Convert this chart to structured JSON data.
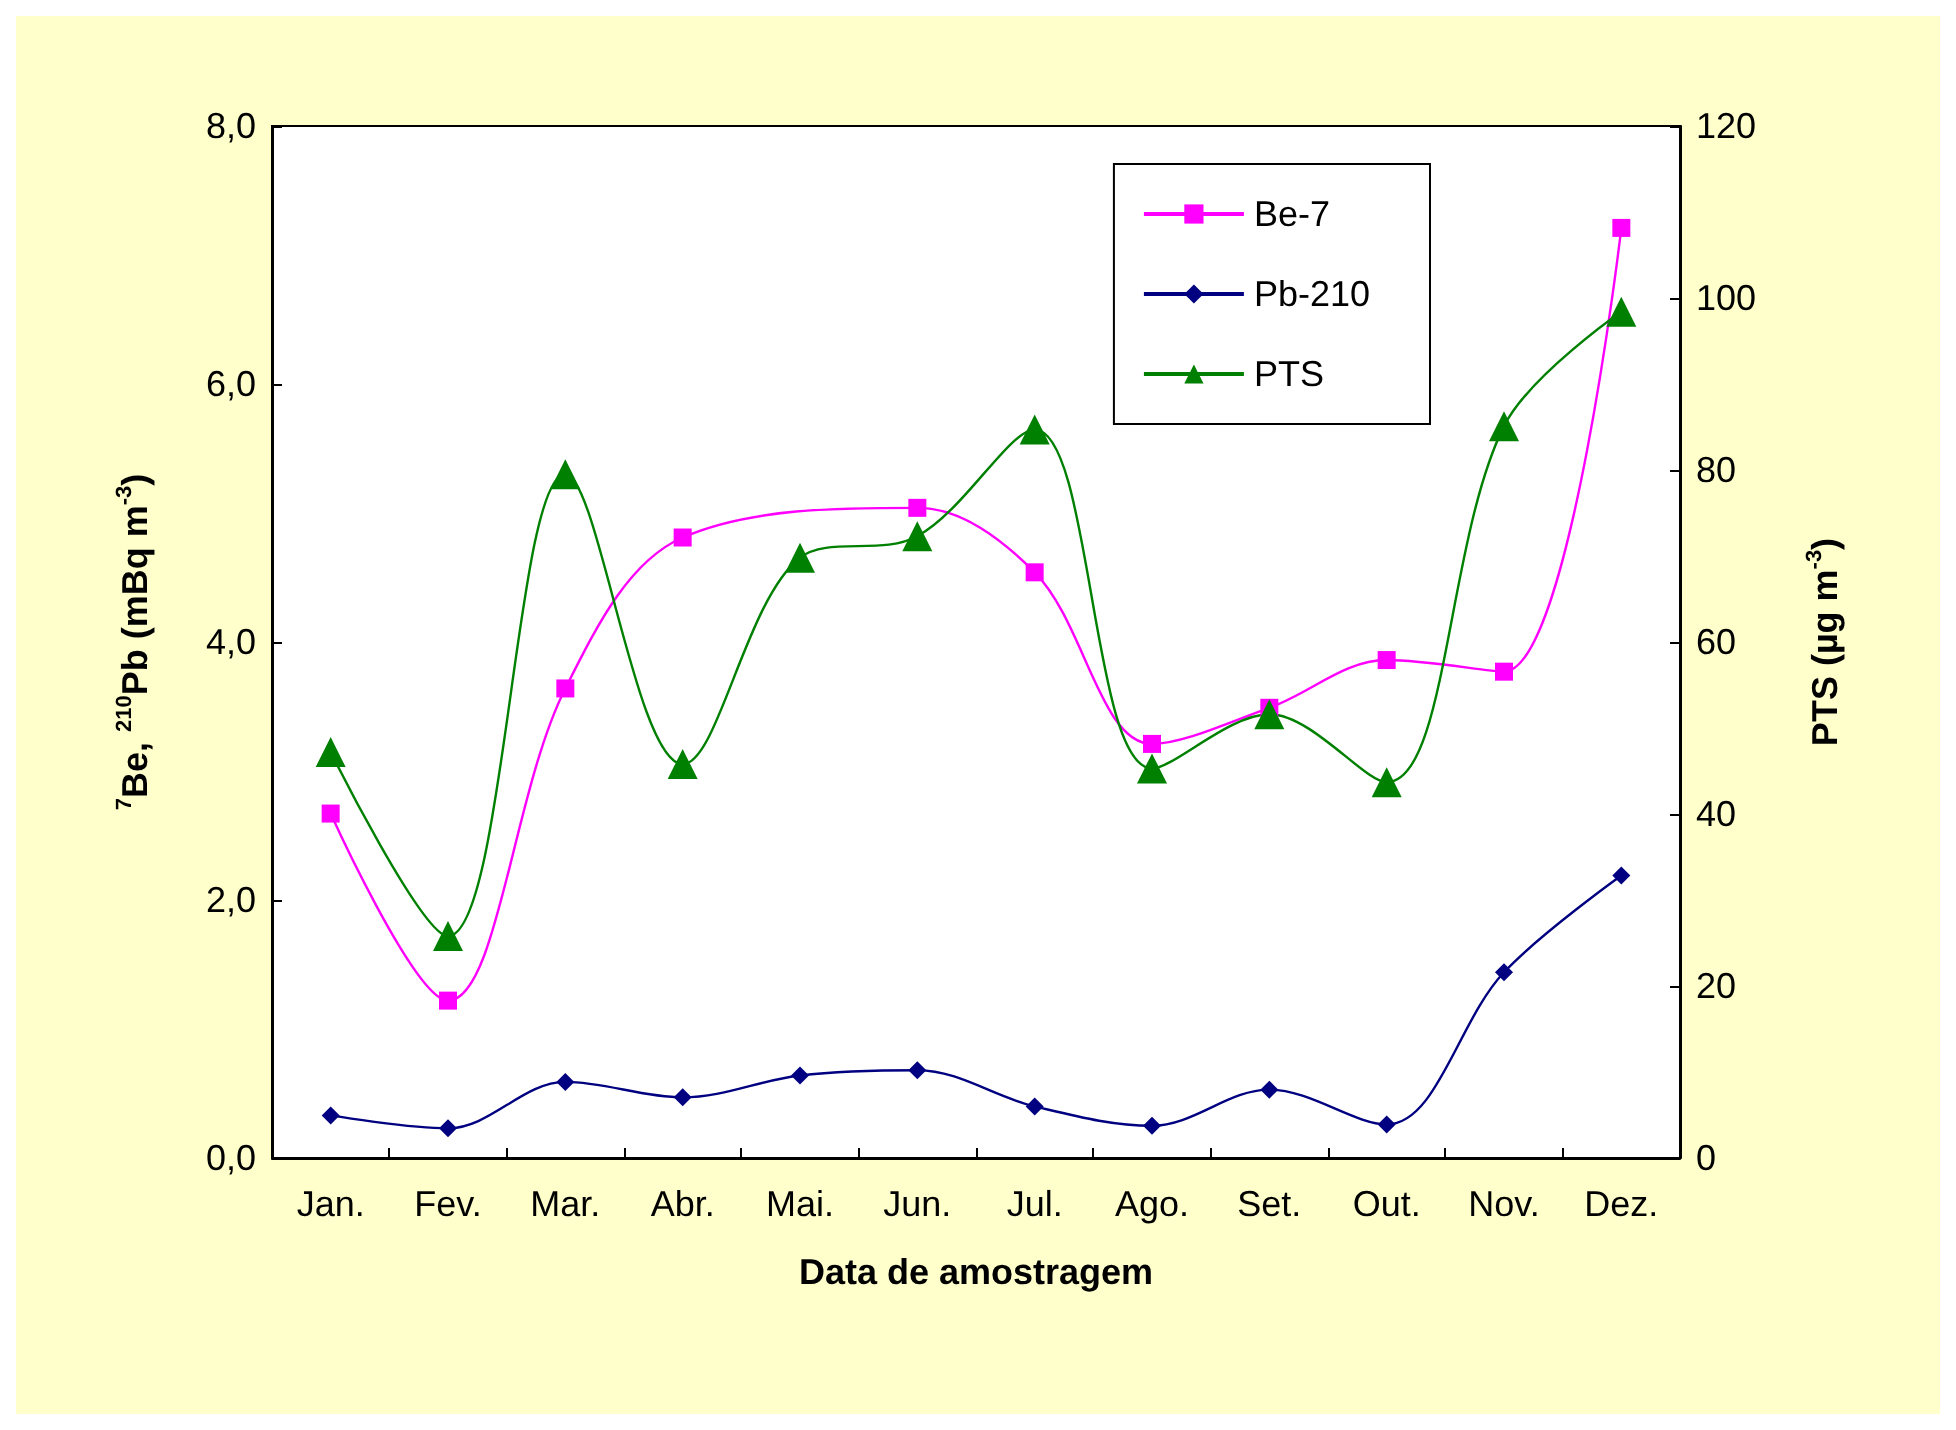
{
  "chart_data": {
    "type": "line",
    "xlabel": "Data de amostragem",
    "ylabel": "$^{7}$Be, $^{210}$Pb (mBq m$^{-3}$)",
    "y2label": "PTS (µg m$^{-3}$)",
    "categories": [
      "Jan.",
      "Fev.",
      "Mar.",
      "Abr.",
      "Mai.",
      "Jun.",
      "Jul.",
      "Ago.",
      "Set.",
      "Out.",
      "Nov.",
      "Dez."
    ],
    "series": [
      {
        "name": "Be-7",
        "color": "#ff00ff",
        "marker": "square",
        "values": [
          2.67,
          1.22,
          3.64,
          4.81,
          null,
          5.04,
          4.54,
          3.21,
          3.49,
          3.86,
          3.77,
          7.21
        ]
      },
      {
        "name": "Pb-210",
        "color": "#000080",
        "marker": "diamond",
        "values": [
          0.33,
          0.23,
          0.59,
          0.47,
          0.64,
          0.68,
          0.4,
          0.25,
          0.53,
          0.26,
          1.44,
          2.19
        ]
      },
      {
        "name": "PTS",
        "color": "#008000",
        "marker": "triangle",
        "axis": "y2",
        "values": [
          47.2,
          25.8,
          79.5,
          45.8,
          69.8,
          72.3,
          84.7,
          45.3,
          51.6,
          43.7,
          85.1,
          98.4
        ]
      }
    ],
    "ylim": [
      0,
      8
    ],
    "yticks": [
      {
        "value": 0,
        "label": "0,0"
      },
      {
        "value": 2,
        "label": "2,0"
      },
      {
        "value": 4,
        "label": "4,0"
      },
      {
        "value": 6,
        "label": "6,0"
      },
      {
        "value": 8,
        "label": "8,0"
      }
    ],
    "y2lim": [
      0,
      120
    ],
    "y2ticks": [
      0,
      20,
      40,
      60,
      80,
      100,
      120
    ],
    "grid": false,
    "legend": "top right",
    "line_style": "solid"
  }
}
